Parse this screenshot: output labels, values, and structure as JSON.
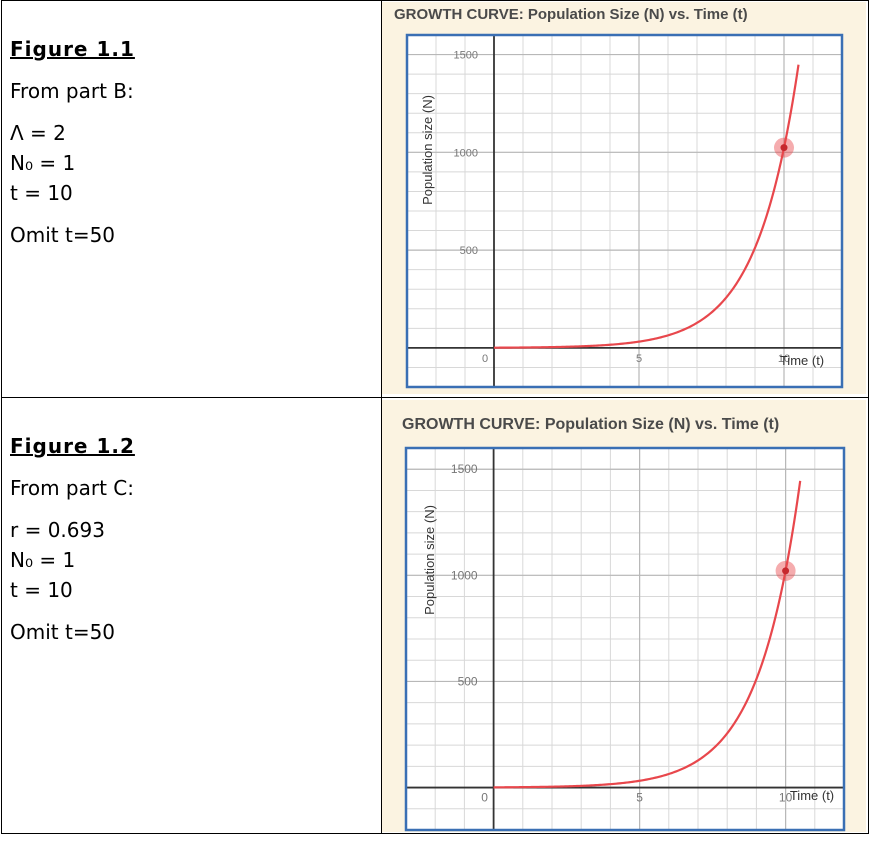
{
  "figures": [
    {
      "title": "Figure 1.1",
      "source": "From part B:",
      "params": [
        "Λ = 2",
        "N₀ = 1",
        "t = 10"
      ],
      "note": "Omit t=50"
    },
    {
      "title": "Figure 1.2",
      "source": "From part C:",
      "params": [
        "r = 0.693",
        "N₀ = 1",
        "t = 10"
      ],
      "note": "Omit t=50"
    }
  ],
  "colors": {
    "curve": "#e8474c",
    "frame": "#3a6fb4",
    "panel": "#fbf3e1",
    "grid": "#d8d8d8"
  },
  "chart_data": [
    {
      "type": "line",
      "title": "GROWTH CURVE: Population Size (N) vs. Time (t)",
      "xlabel": "Time (t)",
      "ylabel": "Population size (N)",
      "xlim": [
        -3,
        12
      ],
      "ylim": [
        -200,
        1600
      ],
      "xticks": [
        0,
        5,
        10
      ],
      "xtick_labels": [
        "0",
        "5",
        "10"
      ],
      "yticks": [
        500,
        1000,
        1500
      ],
      "ytick_labels": [
        "500",
        "1000",
        "1500"
      ],
      "grid": true,
      "series": [
        {
          "model": "N = 2^t",
          "x": [
            0,
            1,
            2,
            3,
            4,
            5,
            6,
            7,
            8,
            9,
            10,
            10.5
          ],
          "y": [
            1,
            2,
            4,
            8,
            16,
            32,
            64,
            128,
            256,
            512,
            1024,
            1448
          ]
        }
      ],
      "highlight_point": {
        "x": 10,
        "y": 1024
      }
    },
    {
      "type": "line",
      "title": "GROWTH CURVE: Population Size (N) vs. Time (t)",
      "xlabel": "Time (t)",
      "ylabel": "Population size (N)",
      "xlim": [
        -3,
        12
      ],
      "ylim": [
        -200,
        1600
      ],
      "xticks": [
        0,
        5,
        10
      ],
      "xtick_labels": [
        "0",
        "5",
        "10"
      ],
      "yticks": [
        500,
        1000,
        1500
      ],
      "ytick_labels": [
        "500",
        "1000",
        "1500"
      ],
      "grid": true,
      "series": [
        {
          "model": "N = e^(0.693t)",
          "x": [
            0,
            1,
            2,
            3,
            4,
            5,
            6,
            7,
            8,
            9,
            10,
            10.5
          ],
          "y": [
            1,
            2,
            4,
            8,
            16,
            32,
            64,
            128,
            256,
            511,
            1021,
            1445
          ]
        }
      ],
      "highlight_point": {
        "x": 10,
        "y": 1021
      }
    }
  ]
}
